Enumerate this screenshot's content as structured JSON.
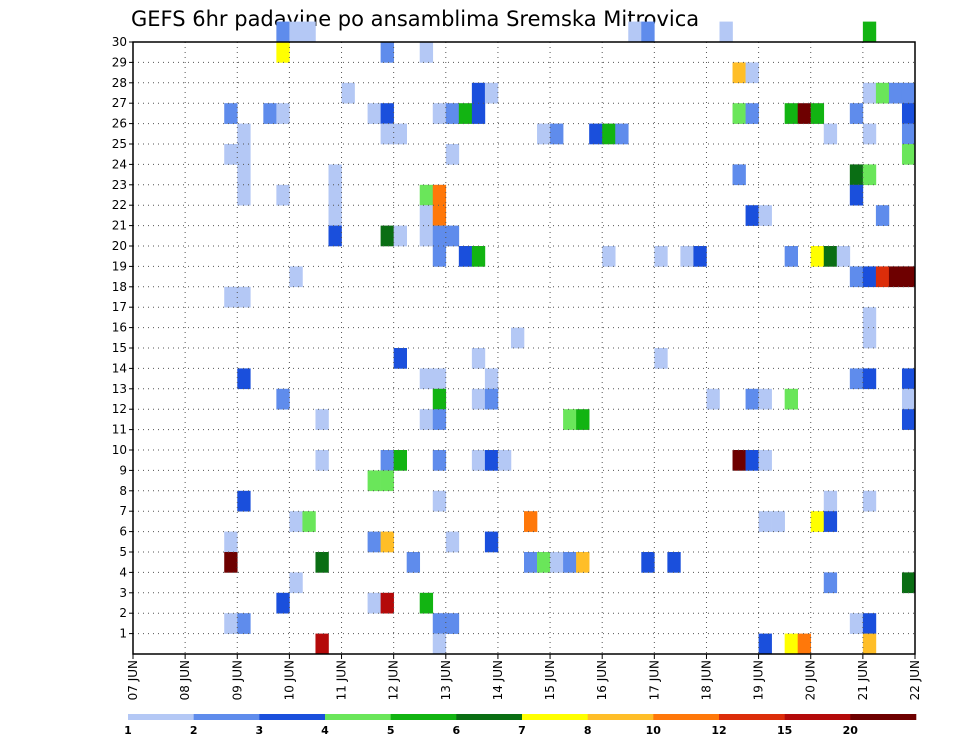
{
  "chart_data": {
    "type": "heatmap",
    "title": "GEFS 6hr padavine po ansamblima Sremska Mitrovica",
    "xlabel": "",
    "ylabel": "",
    "y_ticks": [
      "1",
      "2",
      "3",
      "4",
      "5",
      "6",
      "7",
      "8",
      "9",
      "10",
      "11",
      "12",
      "13",
      "14",
      "15",
      "16",
      "17",
      "18",
      "19",
      "20",
      "21",
      "22",
      "23",
      "24",
      "25",
      "26",
      "27",
      "28",
      "29",
      "30"
    ],
    "y_range": [
      0,
      30
    ],
    "x_ticks": [
      "07 JUN",
      "08 JUN",
      "09 JUN",
      "10 JUN",
      "11 JUN",
      "12 JUN",
      "13 JUN",
      "14 JUN",
      "15 JUN",
      "16 JUN",
      "17 JUN",
      "18 JUN",
      "19 JUN",
      "20 JUN",
      "21 JUN",
      "22 JUN"
    ],
    "x_unit": "6-hour step from 07 JUN 00 UTC (4 steps per day, 60 steps)",
    "x_range": [
      0,
      60
    ],
    "legend": {
      "labels": [
        "1",
        "2",
        "3",
        "4",
        "5",
        "6",
        "7",
        "8",
        "10",
        "12",
        "15",
        "20"
      ],
      "colors": [
        "#b4c8f5",
        "#5f8cec",
        "#1a4fdc",
        "#6ae65a",
        "#12b412",
        "#0a6e14",
        "#ffff00",
        "#ffbe28",
        "#ff780a",
        "#dc2d0a",
        "#b40a0a",
        "#6e0000"
      ]
    },
    "cells": [
      [
        11,
        30,
        1
      ],
      [
        12,
        30,
        0
      ],
      [
        13,
        30,
        0
      ],
      [
        38,
        30,
        0
      ],
      [
        39,
        30,
        1
      ],
      [
        45,
        30,
        0
      ],
      [
        56,
        30,
        4
      ],
      [
        11,
        29,
        6
      ],
      [
        19,
        29,
        1
      ],
      [
        22,
        29,
        0
      ],
      [
        46,
        28,
        7
      ],
      [
        47,
        28,
        0
      ],
      [
        16,
        27,
        0
      ],
      [
        26,
        27,
        2
      ],
      [
        27,
        27,
        0
      ],
      [
        56,
        27,
        0
      ],
      [
        57,
        27,
        3
      ],
      [
        58,
        27,
        1
      ],
      [
        59,
        27,
        1
      ],
      [
        7,
        26,
        1
      ],
      [
        10,
        26,
        1
      ],
      [
        11,
        26,
        0
      ],
      [
        18,
        26,
        0
      ],
      [
        19,
        26,
        2
      ],
      [
        23,
        26,
        0
      ],
      [
        24,
        26,
        1
      ],
      [
        25,
        26,
        4
      ],
      [
        26,
        26,
        2
      ],
      [
        46,
        26,
        3
      ],
      [
        47,
        26,
        1
      ],
      [
        50,
        26,
        4
      ],
      [
        51,
        26,
        11
      ],
      [
        52,
        26,
        4
      ],
      [
        55,
        26,
        1
      ],
      [
        59,
        26,
        2
      ],
      [
        8,
        25,
        0
      ],
      [
        19,
        25,
        0
      ],
      [
        20,
        25,
        0
      ],
      [
        31,
        25,
        0
      ],
      [
        32,
        25,
        1
      ],
      [
        35,
        25,
        2
      ],
      [
        36,
        25,
        4
      ],
      [
        37,
        25,
        1
      ],
      [
        53,
        25,
        0
      ],
      [
        56,
        25,
        0
      ],
      [
        59,
        25,
        1
      ],
      [
        7,
        24,
        0
      ],
      [
        8,
        24,
        0
      ],
      [
        24,
        24,
        0
      ],
      [
        59,
        24,
        3
      ],
      [
        8,
        23,
        0
      ],
      [
        15,
        23,
        0
      ],
      [
        46,
        23,
        1
      ],
      [
        55,
        23,
        5
      ],
      [
        56,
        23,
        3
      ],
      [
        8,
        22,
        0
      ],
      [
        11,
        22,
        0
      ],
      [
        15,
        22,
        0
      ],
      [
        22,
        22,
        3
      ],
      [
        23,
        22,
        8
      ],
      [
        55,
        22,
        2
      ],
      [
        15,
        21,
        0
      ],
      [
        22,
        21,
        0
      ],
      [
        23,
        21,
        8
      ],
      [
        47,
        21,
        2
      ],
      [
        48,
        21,
        0
      ],
      [
        57,
        21,
        1
      ],
      [
        15,
        20,
        2
      ],
      [
        19,
        20,
        5
      ],
      [
        20,
        20,
        0
      ],
      [
        22,
        20,
        0
      ],
      [
        23,
        20,
        1
      ],
      [
        24,
        20,
        1
      ],
      [
        23,
        19,
        1
      ],
      [
        25,
        19,
        2
      ],
      [
        26,
        19,
        4
      ],
      [
        36,
        19,
        0
      ],
      [
        40,
        19,
        0
      ],
      [
        42,
        19,
        0
      ],
      [
        43,
        19,
        2
      ],
      [
        50,
        19,
        1
      ],
      [
        52,
        19,
        6
      ],
      [
        53,
        19,
        5
      ],
      [
        54,
        19,
        0
      ],
      [
        12,
        18,
        0
      ],
      [
        55,
        18,
        1
      ],
      [
        56,
        18,
        2
      ],
      [
        57,
        18,
        9
      ],
      [
        58,
        18,
        11
      ],
      [
        59,
        18,
        11
      ],
      [
        7,
        17,
        0
      ],
      [
        8,
        17,
        0
      ],
      [
        56,
        16,
        0
      ],
      [
        29,
        15,
        0
      ],
      [
        56,
        15,
        0
      ],
      [
        20,
        14,
        2
      ],
      [
        26,
        14,
        0
      ],
      [
        40,
        14,
        0
      ],
      [
        8,
        13,
        2
      ],
      [
        22,
        13,
        0
      ],
      [
        23,
        13,
        0
      ],
      [
        27,
        13,
        0
      ],
      [
        55,
        13,
        1
      ],
      [
        56,
        13,
        2
      ],
      [
        59,
        13,
        2
      ],
      [
        11,
        12,
        1
      ],
      [
        23,
        12,
        4
      ],
      [
        26,
        12,
        0
      ],
      [
        27,
        12,
        1
      ],
      [
        44,
        12,
        0
      ],
      [
        47,
        12,
        1
      ],
      [
        48,
        12,
        0
      ],
      [
        50,
        12,
        3
      ],
      [
        59,
        12,
        0
      ],
      [
        14,
        11,
        0
      ],
      [
        22,
        11,
        0
      ],
      [
        23,
        11,
        1
      ],
      [
        33,
        11,
        3
      ],
      [
        34,
        11,
        4
      ],
      [
        59,
        11,
        2
      ],
      [
        14,
        9,
        0
      ],
      [
        19,
        9,
        1
      ],
      [
        20,
        9,
        4
      ],
      [
        23,
        9,
        1
      ],
      [
        26,
        9,
        0
      ],
      [
        27,
        9,
        2
      ],
      [
        28,
        9,
        0
      ],
      [
        46,
        9,
        11
      ],
      [
        47,
        9,
        2
      ],
      [
        48,
        9,
        0
      ],
      [
        18,
        8,
        3
      ],
      [
        19,
        8,
        3
      ],
      [
        8,
        7,
        2
      ],
      [
        23,
        7,
        0
      ],
      [
        53,
        7,
        0
      ],
      [
        56,
        7,
        0
      ],
      [
        12,
        6,
        0
      ],
      [
        13,
        6,
        3
      ],
      [
        30,
        6,
        8
      ],
      [
        48,
        6,
        0
      ],
      [
        49,
        6,
        0
      ],
      [
        52,
        6,
        6
      ],
      [
        53,
        6,
        2
      ],
      [
        7,
        5,
        0
      ],
      [
        18,
        5,
        1
      ],
      [
        19,
        5,
        7
      ],
      [
        24,
        5,
        0
      ],
      [
        27,
        5,
        2
      ],
      [
        7,
        4,
        11
      ],
      [
        14,
        4,
        5
      ],
      [
        21,
        4,
        1
      ],
      [
        30,
        4,
        1
      ],
      [
        31,
        4,
        3
      ],
      [
        32,
        4,
        0
      ],
      [
        33,
        4,
        1
      ],
      [
        34,
        4,
        7
      ],
      [
        39,
        4,
        2
      ],
      [
        41,
        4,
        2
      ],
      [
        12,
        3,
        0
      ],
      [
        53,
        3,
        1
      ],
      [
        59,
        3,
        5
      ],
      [
        11,
        2,
        2
      ],
      [
        18,
        2,
        0
      ],
      [
        19,
        2,
        10
      ],
      [
        22,
        2,
        4
      ],
      [
        7,
        1,
        0
      ],
      [
        8,
        1,
        1
      ],
      [
        23,
        1,
        1
      ],
      [
        24,
        1,
        1
      ],
      [
        55,
        1,
        0
      ],
      [
        56,
        1,
        2
      ],
      [
        14,
        0,
        10
      ],
      [
        23,
        0,
        0
      ],
      [
        48,
        0,
        2
      ],
      [
        50,
        0,
        6
      ],
      [
        51,
        0,
        8
      ],
      [
        56,
        0,
        7
      ]
    ]
  }
}
